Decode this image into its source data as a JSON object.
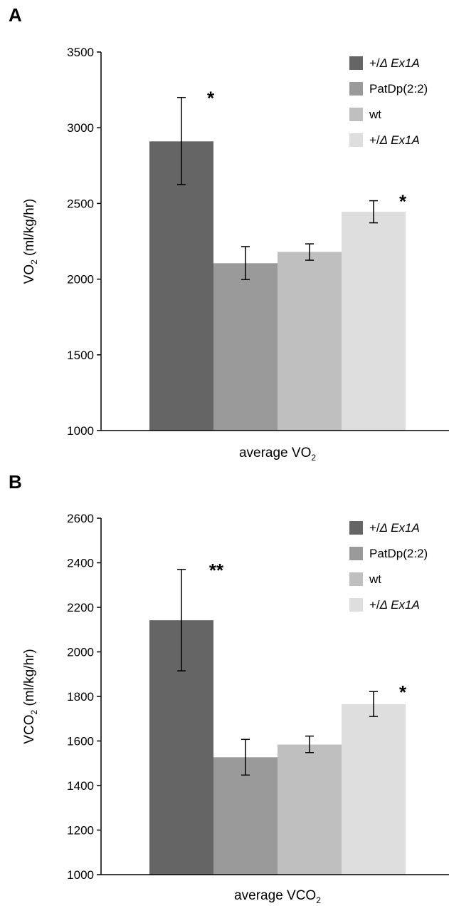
{
  "chart_data": [
    {
      "panel_label": "A",
      "type": "bar",
      "ylabel": "VO",
      "ylabel_sub": "2",
      "ylabel_unit": " (ml/kg/hr)",
      "xlabel": "average VO",
      "xlabel_sub": "2",
      "ylim": [
        1000,
        3500
      ],
      "yticks": [
        1000,
        1500,
        2000,
        2500,
        3000,
        3500
      ],
      "ytick_labels": [
        "1000",
        "1500",
        "2000",
        "2500",
        "3000",
        "3500"
      ],
      "legend_position": "top-right",
      "series": [
        {
          "name_plain": "+/",
          "name_italic": "Δ Ex1A",
          "color": "#656565",
          "value": 2910,
          "err_low": 2625,
          "err_high": 3200,
          "annotation": "*"
        },
        {
          "name_plain": "PatDp(2:2)",
          "name_italic": "",
          "color": "#9a9a9a",
          "value": 2105,
          "err_low": 1997,
          "err_high": 2215,
          "annotation": ""
        },
        {
          "name_plain": "wt",
          "name_italic": "",
          "color": "#bfbfbf",
          "value": 2180,
          "err_low": 2125,
          "err_high": 2233,
          "annotation": ""
        },
        {
          "name_plain": "+/",
          "name_italic": "Δ Ex1A",
          "color": "#dedede",
          "value": 2445,
          "err_low": 2372,
          "err_high": 2518,
          "annotation": "*"
        }
      ]
    },
    {
      "panel_label": "B",
      "type": "bar",
      "ylabel": "VCO",
      "ylabel_sub": "2",
      "ylabel_unit": " (ml/kg/hr)",
      "xlabel": "average VCO",
      "xlabel_sub": "2",
      "ylim": [
        1000,
        2600
      ],
      "yticks": [
        1000,
        1200,
        1400,
        1600,
        1800,
        2000,
        2200,
        2400,
        2600
      ],
      "ytick_labels": [
        "1000",
        "1200",
        "1400",
        "1600",
        "1800",
        "2000",
        "2200",
        "2400",
        "2600"
      ],
      "legend_position": "top-right",
      "series": [
        {
          "name_plain": "+/",
          "name_italic": "Δ Ex1A",
          "color": "#656565",
          "value": 2142,
          "err_low": 1915,
          "err_high": 2370,
          "annotation": "**"
        },
        {
          "name_plain": "PatDp(2:2)",
          "name_italic": "",
          "color": "#9a9a9a",
          "value": 1527,
          "err_low": 1447,
          "err_high": 1607,
          "annotation": ""
        },
        {
          "name_plain": "wt",
          "name_italic": "",
          "color": "#bfbfbf",
          "value": 1584,
          "err_low": 1548,
          "err_high": 1622,
          "annotation": ""
        },
        {
          "name_plain": "+/",
          "name_italic": "Δ Ex1A",
          "color": "#dedede",
          "value": 1765,
          "err_low": 1710,
          "err_high": 1822,
          "annotation": "*"
        }
      ]
    }
  ]
}
